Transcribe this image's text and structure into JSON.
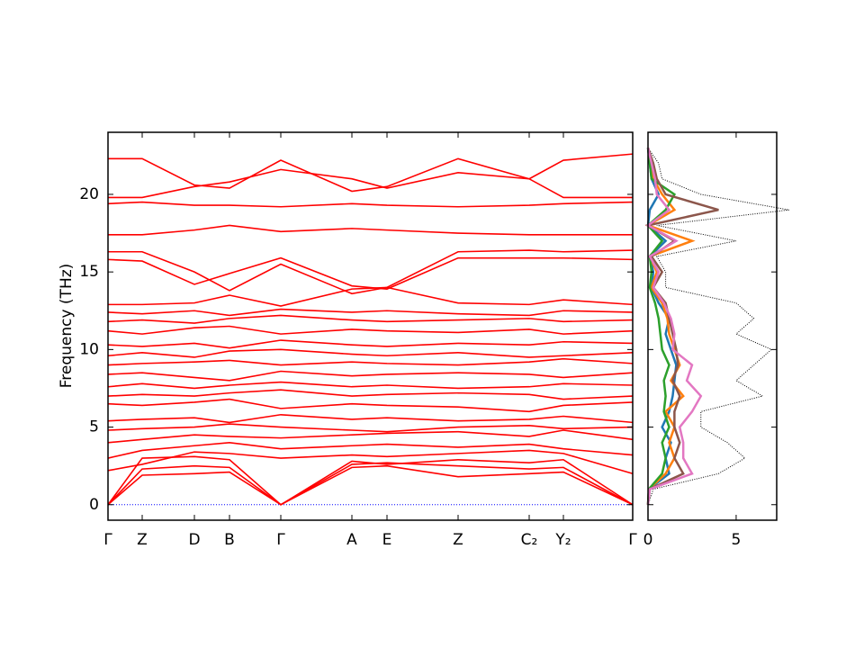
{
  "chart_data": [
    {
      "type": "line",
      "ylabel": "Frequency (THz)",
      "x": [
        0,
        0.38,
        0.96,
        1.35,
        1.92,
        2.71,
        3.1,
        3.89,
        4.68,
        5.06,
        5.83
      ],
      "xlim": [
        0,
        5.83
      ],
      "xticks": [
        {
          "value": 0,
          "label": "Γ"
        },
        {
          "value": 0.38,
          "label": "Z"
        },
        {
          "value": 0.96,
          "label": "D"
        },
        {
          "value": 1.35,
          "label": "B"
        },
        {
          "value": 1.92,
          "label": "Γ"
        },
        {
          "value": 2.71,
          "label": "A"
        },
        {
          "value": 3.1,
          "label": "E"
        },
        {
          "value": 3.89,
          "label": "Z"
        },
        {
          "value": 4.68,
          "label": "C₂"
        },
        {
          "value": 5.06,
          "label": "Y₂"
        },
        {
          "value": 5.83,
          "label": "Γ"
        }
      ],
      "ylim": [
        -1,
        24
      ],
      "yticks": [
        0,
        5,
        10,
        15,
        20
      ],
      "zero_line_color": "#0000ff",
      "series": [
        {
          "color": "#ff0000",
          "values": [
            0,
            1.9,
            2.0,
            2.1,
            0,
            2.4,
            2.5,
            1.8,
            2.0,
            2.1,
            0
          ]
        },
        {
          "color": "#ff0000",
          "values": [
            0,
            2.3,
            2.5,
            2.4,
            0,
            2.6,
            2.7,
            2.5,
            2.3,
            2.4,
            0
          ]
        },
        {
          "color": "#ff0000",
          "values": [
            0,
            3.0,
            3.1,
            2.9,
            0,
            2.8,
            2.6,
            2.9,
            2.7,
            2.9,
            0
          ]
        },
        {
          "color": "#ff0000",
          "values": [
            2.2,
            2.6,
            3.4,
            3.3,
            3.0,
            3.2,
            3.1,
            3.3,
            3.5,
            3.3,
            2.0
          ]
        },
        {
          "color": "#ff0000",
          "values": [
            3.0,
            3.5,
            3.8,
            4.0,
            3.6,
            3.8,
            3.9,
            3.7,
            3.9,
            3.6,
            3.2
          ]
        },
        {
          "color": "#ff0000",
          "values": [
            4.0,
            4.2,
            4.5,
            4.4,
            4.3,
            4.5,
            4.6,
            4.7,
            4.4,
            4.8,
            4.2
          ]
        },
        {
          "color": "#ff0000",
          "values": [
            4.8,
            4.9,
            5.0,
            5.2,
            5.0,
            4.8,
            4.7,
            5.0,
            5.1,
            4.9,
            5.0
          ]
        },
        {
          "color": "#ff0000",
          "values": [
            5.4,
            5.5,
            5.6,
            5.3,
            5.8,
            5.5,
            5.6,
            5.4,
            5.5,
            5.7,
            5.3
          ]
        },
        {
          "color": "#ff0000",
          "values": [
            6.5,
            6.4,
            6.6,
            6.8,
            6.2,
            6.5,
            6.4,
            6.3,
            6.0,
            6.4,
            6.6
          ]
        },
        {
          "color": "#ff0000",
          "values": [
            7.0,
            7.1,
            7.0,
            7.2,
            7.4,
            7.0,
            7.1,
            7.2,
            7.1,
            6.8,
            7.0
          ]
        },
        {
          "color": "#ff0000",
          "values": [
            7.6,
            7.8,
            7.5,
            7.7,
            7.9,
            7.6,
            7.7,
            7.5,
            7.6,
            7.8,
            7.7
          ]
        },
        {
          "color": "#ff0000",
          "values": [
            8.4,
            8.5,
            8.2,
            8.0,
            8.6,
            8.3,
            8.4,
            8.5,
            8.4,
            8.2,
            8.5
          ]
        },
        {
          "color": "#ff0000",
          "values": [
            9.0,
            9.1,
            9.2,
            9.3,
            9.0,
            9.2,
            9.1,
            9.0,
            9.2,
            9.4,
            9.1
          ]
        },
        {
          "color": "#ff0000",
          "values": [
            9.6,
            9.8,
            9.5,
            9.9,
            10.0,
            9.7,
            9.6,
            9.8,
            9.5,
            9.6,
            9.8
          ]
        },
        {
          "color": "#ff0000",
          "values": [
            10.3,
            10.2,
            10.4,
            10.1,
            10.6,
            10.3,
            10.2,
            10.4,
            10.3,
            10.5,
            10.4
          ]
        },
        {
          "color": "#ff0000",
          "values": [
            11.2,
            11.0,
            11.4,
            11.5,
            11.0,
            11.3,
            11.2,
            11.1,
            11.3,
            11.0,
            11.2
          ]
        },
        {
          "color": "#ff0000",
          "values": [
            11.8,
            11.9,
            11.7,
            12.0,
            12.2,
            11.9,
            11.8,
            11.9,
            12.0,
            11.8,
            11.9
          ]
        },
        {
          "color": "#ff0000",
          "values": [
            12.4,
            12.3,
            12.5,
            12.2,
            12.6,
            12.4,
            12.5,
            12.3,
            12.2,
            12.5,
            12.4
          ]
        },
        {
          "color": "#ff0000",
          "values": [
            12.9,
            12.9,
            13.0,
            13.5,
            12.8,
            13.9,
            14.0,
            13.0,
            12.9,
            13.2,
            12.9
          ]
        },
        {
          "color": "#ff0000",
          "values": [
            15.8,
            15.7,
            14.2,
            14.9,
            15.9,
            14.1,
            13.9,
            15.9,
            15.9,
            15.9,
            15.8
          ]
        },
        {
          "color": "#ff0000",
          "values": [
            16.3,
            16.3,
            15.0,
            13.8,
            15.5,
            13.6,
            14.0,
            16.3,
            16.4,
            16.3,
            16.4
          ]
        },
        {
          "color": "#ff0000",
          "values": [
            17.4,
            17.4,
            17.7,
            18.0,
            17.6,
            17.8,
            17.7,
            17.5,
            17.4,
            17.4,
            17.4
          ]
        },
        {
          "color": "#ff0000",
          "values": [
            19.4,
            19.5,
            19.3,
            19.3,
            19.2,
            19.4,
            19.3,
            19.2,
            19.3,
            19.4,
            19.5
          ]
        },
        {
          "color": "#ff0000",
          "values": [
            19.8,
            19.8,
            20.5,
            20.8,
            21.6,
            21.0,
            20.4,
            21.4,
            21.0,
            19.8,
            19.8
          ]
        },
        {
          "color": "#ff0000",
          "values": [
            22.3,
            22.3,
            20.6,
            20.4,
            22.2,
            20.2,
            20.5,
            22.3,
            21.0,
            22.2,
            22.6
          ]
        }
      ]
    },
    {
      "type": "dos",
      "y": [
        0,
        1,
        2,
        3,
        4,
        5,
        6,
        7,
        8,
        9,
        10,
        11,
        12,
        13,
        14,
        15,
        16,
        17,
        18,
        19,
        20,
        21,
        22,
        23
      ],
      "xlim": [
        0,
        7.3
      ],
      "xticks": [
        0,
        5
      ],
      "ylim": [
        -1,
        24
      ],
      "yticks": [
        0,
        5,
        10,
        15,
        20
      ],
      "series": [
        {
          "color": "#000000",
          "dotted": true,
          "values": [
            0,
            0.3,
            4,
            5.5,
            4.5,
            3,
            3,
            6.5,
            5,
            6,
            7,
            5,
            6,
            5,
            1,
            1,
            0.5,
            5,
            0.5,
            8,
            3,
            0.8,
            0.6,
            0
          ]
        },
        {
          "color": "#1f77b4",
          "values": [
            0,
            0.05,
            1.2,
            1.0,
            1.3,
            0.8,
            1.2,
            1.4,
            1.5,
            1.6,
            1.3,
            1.0,
            1.2,
            0.6,
            0.2,
            0.3,
            0.1,
            1.0,
            0,
            0.1,
            0.6,
            0.2,
            0.1,
            0
          ]
        },
        {
          "color": "#ff7f0e",
          "values": [
            0,
            0.05,
            1.0,
            1.5,
            1.2,
            1.5,
            1.0,
            2.0,
            1.3,
            1.8,
            1.5,
            1.2,
            1.1,
            0.8,
            0.2,
            0.5,
            0.1,
            2.5,
            0,
            1.5,
            0.8,
            0.3,
            0.2,
            0
          ]
        },
        {
          "color": "#2ca02c",
          "values": [
            0,
            0.05,
            0.8,
            1.0,
            0.8,
            1.2,
            0.9,
            1.0,
            0.9,
            1.2,
            0.8,
            0.7,
            0.6,
            0.4,
            0.1,
            0.2,
            0.1,
            0.8,
            0,
            1.0,
            1.5,
            0.2,
            0.1,
            0
          ]
        },
        {
          "color": "#8c564b",
          "values": [
            0,
            0.1,
            2.0,
            1.5,
            1.8,
            1.5,
            1.5,
            1.8,
            1.4,
            1.7,
            1.6,
            1.4,
            1.2,
            1.0,
            0.3,
            0.8,
            0.2,
            1.5,
            0,
            4.0,
            1.0,
            0.5,
            0.3,
            0
          ]
        },
        {
          "color": "#e377c2",
          "values": [
            0,
            0.1,
            2.5,
            2.0,
            2.0,
            1.8,
            2.5,
            3.0,
            2.2,
            2.5,
            1.4,
            1.5,
            1.3,
            0.9,
            0.3,
            0.6,
            0.1,
            1.6,
            0,
            1.2,
            0.5,
            0.4,
            0.2,
            0
          ]
        }
      ]
    }
  ]
}
